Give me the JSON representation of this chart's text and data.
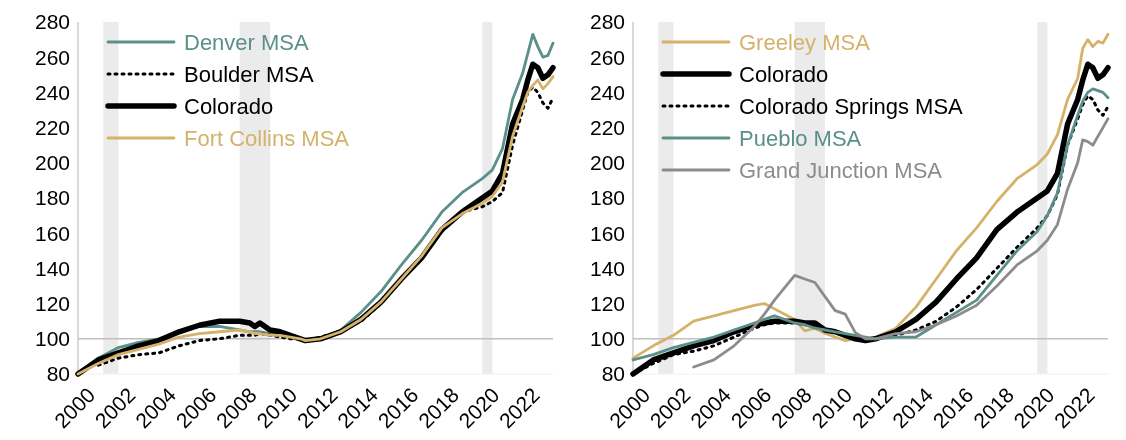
{
  "chart_data": [
    {
      "type": "line",
      "x": [
        2000,
        2001,
        2002,
        2003,
        2004,
        2005,
        2006,
        2007,
        2008,
        2008.5,
        2008.75,
        2009,
        2009.5,
        2010,
        2010.5,
        2011,
        2011.25,
        2012,
        2013,
        2014,
        2015,
        2016,
        2017,
        2018,
        2019,
        2020,
        2020.5,
        2021,
        2021.5,
        2022,
        2022.25,
        2022.5,
        2022.75,
        2023,
        2023.25,
        2023.5
      ],
      "series": [
        {
          "name": "Denver MSA",
          "color": "#5b8f8a",
          "values": [
            80,
            89,
            95,
            98,
            100,
            104,
            107,
            107,
            105,
            104,
            104,
            104,
            103,
            102,
            101,
            100,
            99,
            100,
            105,
            115,
            127,
            142,
            156,
            172,
            183,
            191,
            196,
            208,
            236,
            251,
            262,
            273,
            266,
            260,
            261,
            268
          ]
        },
        {
          "name": "Boulder MSA",
          "color": "#000000",
          "line_style": "dotted",
          "values": [
            null,
            85,
            89,
            91,
            92,
            96,
            99,
            100,
            102,
            102,
            102,
            103,
            102,
            101,
            100,
            100,
            99,
            101,
            104,
            110,
            120,
            134,
            146,
            161,
            172,
            175,
            178,
            183,
            210,
            230,
            240,
            243,
            240,
            234,
            231,
            237
          ]
        },
        {
          "name": "Colorado",
          "color": "#000000",
          "values": [
            80,
            88,
            92,
            96,
            99,
            104,
            107.7,
            110,
            110,
            109,
            107,
            109,
            105,
            104,
            102,
            100,
            99,
            100,
            104,
            111,
            121,
            134,
            146,
            162,
            172,
            180,
            184,
            194,
            222,
            236,
            247,
            256,
            254,
            248,
            250,
            254
          ]
        },
        {
          "name": "Fort Collins MSA",
          "color": "#d4b26a",
          "values": [
            80,
            86,
            91,
            94,
            97,
            101,
            103,
            104,
            105,
            104,
            103,
            103,
            102,
            102,
            101,
            100,
            99,
            100,
            104,
            111,
            121,
            134,
            147,
            163,
            171,
            177,
            181,
            189,
            215,
            232,
            240,
            244,
            247,
            242,
            245,
            249
          ]
        }
      ],
      "xlim": [
        2000,
        2023.5
      ],
      "xticks": [
        2000,
        2002,
        2004,
        2006,
        2008,
        2010,
        2012,
        2014,
        2016,
        2018,
        2020,
        2022
      ],
      "ylim": [
        80,
        280
      ],
      "yticks": [
        80,
        100,
        120,
        140,
        160,
        180,
        200,
        220,
        240,
        260,
        280
      ],
      "ref_lines": [
        {
          "axis": "y",
          "value": 100,
          "color": "#bfbfbf"
        }
      ],
      "bands": [
        {
          "axis": "x",
          "from": 2001.25,
          "to": 2002,
          "color": "#ebebeb"
        },
        {
          "axis": "x",
          "from": 2008,
          "to": 2009.5,
          "color": "#ebebeb"
        },
        {
          "axis": "x",
          "from": 2020,
          "to": 2020.5,
          "color": "#ebebeb"
        }
      ],
      "legend": "top left"
    },
    {
      "type": "line",
      "x": [
        2000,
        2001,
        2002,
        2003,
        2004,
        2005,
        2006,
        2006.5,
        2007,
        2008,
        2008.5,
        2009,
        2009.5,
        2010,
        2010.5,
        2011,
        2011.5,
        2012,
        2013,
        2014,
        2015,
        2016,
        2017,
        2018,
        2019,
        2020,
        2020.5,
        2021,
        2021.5,
        2022,
        2022.25,
        2022.5,
        2022.75,
        2023,
        2023.25,
        2023.5
      ],
      "series": [
        {
          "name": "Greeley MSA",
          "color": "#d4b26a",
          "values": [
            89,
            96,
            102,
            110,
            113,
            116,
            119,
            120,
            117,
            111,
            104.5,
            106,
            103,
            101,
            99,
            100,
            100,
            101,
            106,
            118,
            134,
            150,
            163,
            178,
            191,
            199,
            205,
            216,
            236,
            248,
            265,
            270,
            266,
            269,
            268,
            273
          ]
        },
        {
          "name": "Colorado",
          "color": "#000000",
          "values": [
            80,
            88,
            92,
            96,
            99,
            104,
            107.7,
            109,
            110,
            110,
            109,
            109,
            105,
            104,
            102,
            100,
            99,
            100,
            104,
            111,
            121,
            134,
            146,
            162,
            172,
            180,
            184,
            194,
            222,
            236,
            247,
            256,
            254,
            248,
            250,
            254
          ]
        },
        {
          "name": "Colorado Springs MSA",
          "color": "#000000",
          "line_style": "dotted",
          "values": [
            80,
            86,
            91,
            93,
            96,
            101,
            106,
            108,
            109,
            109,
            108,
            107,
            105,
            104,
            102,
            101,
            100,
            100,
            102,
            105,
            110,
            118,
            128,
            140,
            152,
            163,
            170,
            182,
            210,
            225,
            233,
            238,
            236,
            230,
            227,
            232
          ]
        },
        {
          "name": "Pueblo MSA",
          "color": "#5b8f8a",
          "values": [
            88,
            91,
            95,
            98,
            101,
            105,
            109,
            111,
            113,
            109,
            108,
            106,
            105,
            104,
            103,
            102,
            101,
            100,
            101,
            101,
            108,
            115,
            122,
            136,
            150,
            161,
            170,
            183,
            210,
            227,
            235,
            240,
            242,
            241,
            240,
            237
          ]
        },
        {
          "name": "Grand Junction MSA",
          "color": "#8c8c8c",
          "values": [
            null,
            null,
            null,
            84,
            88,
            96,
            107,
            114,
            122,
            136,
            134,
            132,
            124,
            116,
            114,
            103.5,
            100,
            100,
            103,
            104,
            108,
            113,
            119,
            130,
            142,
            150,
            156,
            165,
            185,
            200,
            213,
            212,
            210,
            215,
            220,
            225
          ]
        }
      ],
      "xlim": [
        2000,
        2023.5
      ],
      "xticks": [
        2000,
        2002,
        2004,
        2006,
        2008,
        2010,
        2012,
        2014,
        2016,
        2018,
        2020,
        2022
      ],
      "ylim": [
        80,
        280
      ],
      "yticks": [
        80,
        100,
        120,
        140,
        160,
        180,
        200,
        220,
        240,
        260,
        280
      ],
      "ref_lines": [
        {
          "axis": "y",
          "value": 100,
          "color": "#bfbfbf"
        }
      ],
      "bands": [
        {
          "axis": "x",
          "from": 2001.25,
          "to": 2002,
          "color": "#ebebeb"
        },
        {
          "axis": "x",
          "from": 2008,
          "to": 2009.5,
          "color": "#ebebeb"
        },
        {
          "axis": "x",
          "from": 2020,
          "to": 2020.5,
          "color": "#ebebeb"
        }
      ],
      "legend": "top left"
    }
  ]
}
